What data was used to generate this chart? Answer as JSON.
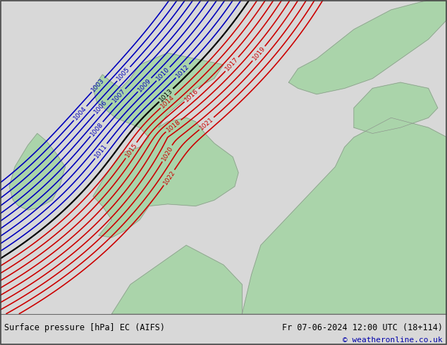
{
  "title_left": "Surface pressure [hPa] EC (AIFS)",
  "title_right": "Fr 07-06-2024 12:00 UTC (18+114)",
  "copyright": "© weatheronline.co.uk",
  "bg_color": "#c8c8d4",
  "land_color": "#aad4aa",
  "footer_bg": "#d8d8d8",
  "blue_color": "#0000bb",
  "red_color": "#cc0000",
  "black_color": "#000000",
  "coast_color": "#888888",
  "text_color": "#000000",
  "copyright_color": "#0000aa",
  "figsize": [
    6.34,
    4.9
  ],
  "dpi": 100,
  "xlim": [
    -11,
    13
  ],
  "ylim": [
    46,
    62
  ]
}
